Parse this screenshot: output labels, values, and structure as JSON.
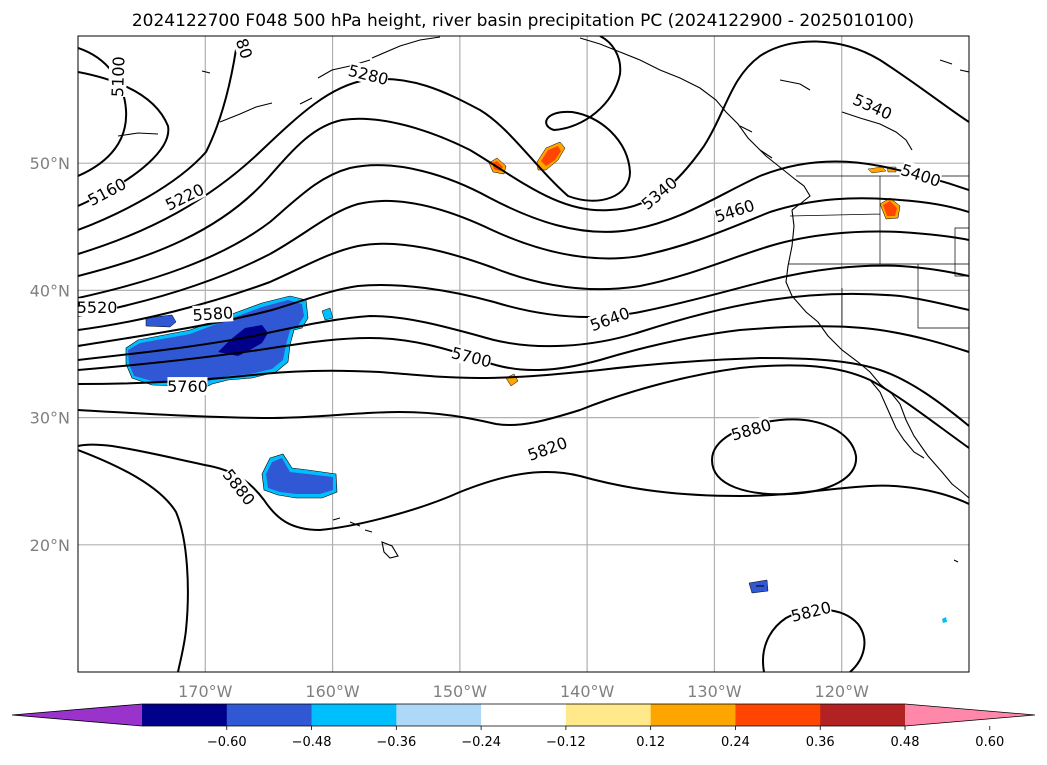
{
  "title": "2024122700 F048 500 hPa height, river basin precipitation PC (2024122900 - 2025010100)",
  "colors": {
    "grid": "#b0b0b0",
    "contour": "#000000",
    "tick": "#808080",
    "coast": "#000000"
  },
  "map": {
    "lon_range": [
      -180,
      -110
    ],
    "lat_range": [
      10,
      60
    ],
    "lon_ticks": [
      {
        "value": -170,
        "label": "170°W"
      },
      {
        "value": -160,
        "label": "160°W"
      },
      {
        "value": -150,
        "label": "150°W"
      },
      {
        "value": -140,
        "label": "140°W"
      },
      {
        "value": -130,
        "label": "130°W"
      },
      {
        "value": -120,
        "label": "120°W"
      }
    ],
    "lat_ticks": [
      {
        "value": 50,
        "label": "50°N"
      },
      {
        "value": 40,
        "label": "40°N"
      },
      {
        "value": 30,
        "label": "30°N"
      },
      {
        "value": 20,
        "label": "20°N"
      }
    ],
    "height_contour_labels": [
      {
        "text": "5100",
        "lon": -176.8,
        "lat": 56.8,
        "rot": -88
      },
      {
        "text": "5160",
        "lon": -177.7,
        "lat": 47.7,
        "rot": -28
      },
      {
        "text": "5220",
        "lon": -171.6,
        "lat": 47.3,
        "rot": -26
      },
      {
        "text": "5280",
        "lon": -157.2,
        "lat": 56.9,
        "rot": 14
      },
      {
        "text": "80",
        "lon": -167.0,
        "lat": 59.0,
        "rot": 72
      },
      {
        "text": "5340",
        "lon": -134.3,
        "lat": 47.6,
        "rot": -40
      },
      {
        "text": "5340",
        "lon": -117.6,
        "lat": 54.4,
        "rot": 24
      },
      {
        "text": "5400",
        "lon": -113.8,
        "lat": 49.0,
        "rot": 18
      },
      {
        "text": "5460",
        "lon": -128.4,
        "lat": 46.2,
        "rot": -18
      },
      {
        "text": "5520",
        "lon": -178.5,
        "lat": 38.6,
        "rot": 0
      },
      {
        "text": "5580",
        "lon": -169.4,
        "lat": 38.1,
        "rot": -4
      },
      {
        "text": "5640",
        "lon": -138.2,
        "lat": 37.7,
        "rot": -20
      },
      {
        "text": "5700",
        "lon": -149.1,
        "lat": 34.7,
        "rot": 14
      },
      {
        "text": "5760",
        "lon": -171.4,
        "lat": 32.4,
        "rot": 0
      },
      {
        "text": "5820",
        "lon": -143.1,
        "lat": 27.5,
        "rot": -20
      },
      {
        "text": "5880",
        "lon": -167.4,
        "lat": 24.5,
        "rot": 52
      },
      {
        "text": "5880",
        "lon": -127.1,
        "lat": 29.0,
        "rot": -16
      },
      {
        "text": "5820",
        "lon": -122.4,
        "lat": 14.7,
        "rot": -14
      }
    ]
  },
  "colorbar": {
    "ticks": [
      "−0.60",
      "−0.48",
      "−0.36",
      "−0.24",
      "−0.12",
      "0.12",
      "0.24",
      "0.36",
      "0.48",
      "0.60"
    ],
    "bins": [
      "#9933cc",
      "#00008b",
      "#3158d4",
      "#00bfff",
      "#add8f7",
      "#ffffff",
      "#ffe98a",
      "#ffa500",
      "#ff4500",
      "#b22222",
      "#ff88aa"
    ]
  }
}
